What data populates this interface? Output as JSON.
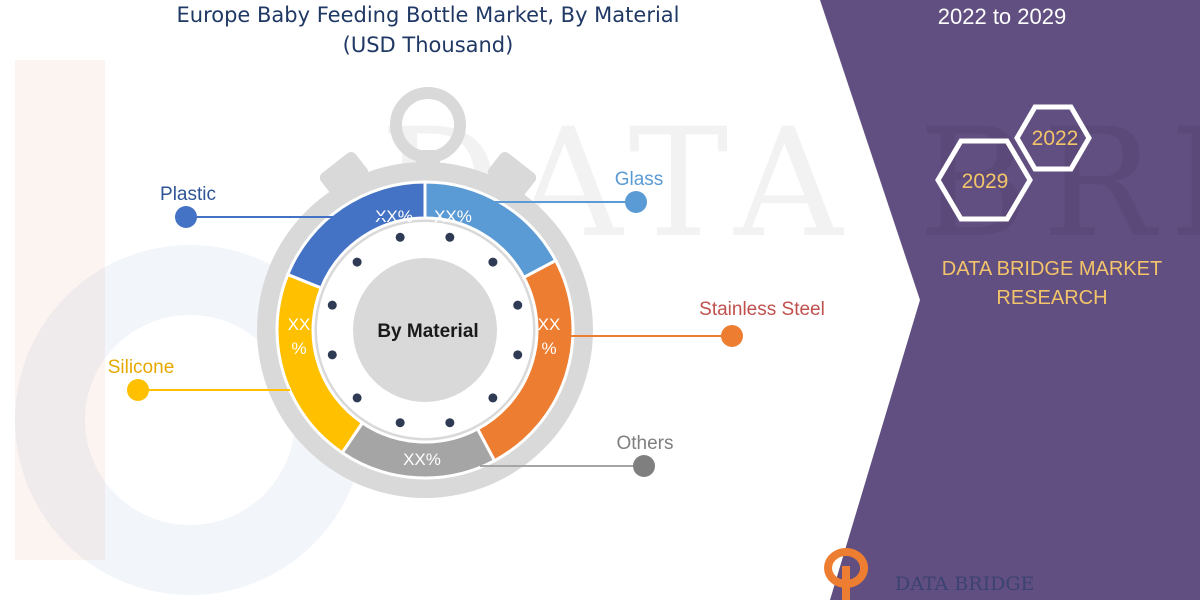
{
  "chart": {
    "title_line1": "Europe Baby Feeding Bottle Market, By Material",
    "title_line2": "(USD Thousand)",
    "center_label": "By Material"
  },
  "chart_data": {
    "type": "pie",
    "title": "Europe Baby Feeding Bottle Market, By Material (USD Thousand)",
    "categories": [
      "Plastic",
      "Glass",
      "Stainless Steel",
      "Others",
      "Silicone"
    ],
    "value_labels": [
      "XX%",
      "XX%",
      "XX%",
      "XX%",
      "XX%"
    ],
    "segment_colors": [
      "#4472C4",
      "#5B9BD5",
      "#ED7D31",
      "#A5A5A5",
      "#FFC000"
    ],
    "legend": "callouts"
  },
  "panel": {
    "period_top": "2022 to 2029",
    "hex_top": "2022",
    "hex_bottom": "2029",
    "company_line1": "DATA BRIDGE MARKET",
    "company_line2": "RESEARCH",
    "bg_color": "#604F80",
    "accent_color": "#F4C46A"
  },
  "logo": {
    "name": "DATA BRIDGE",
    "watermark": "DATA BRIDGE"
  }
}
